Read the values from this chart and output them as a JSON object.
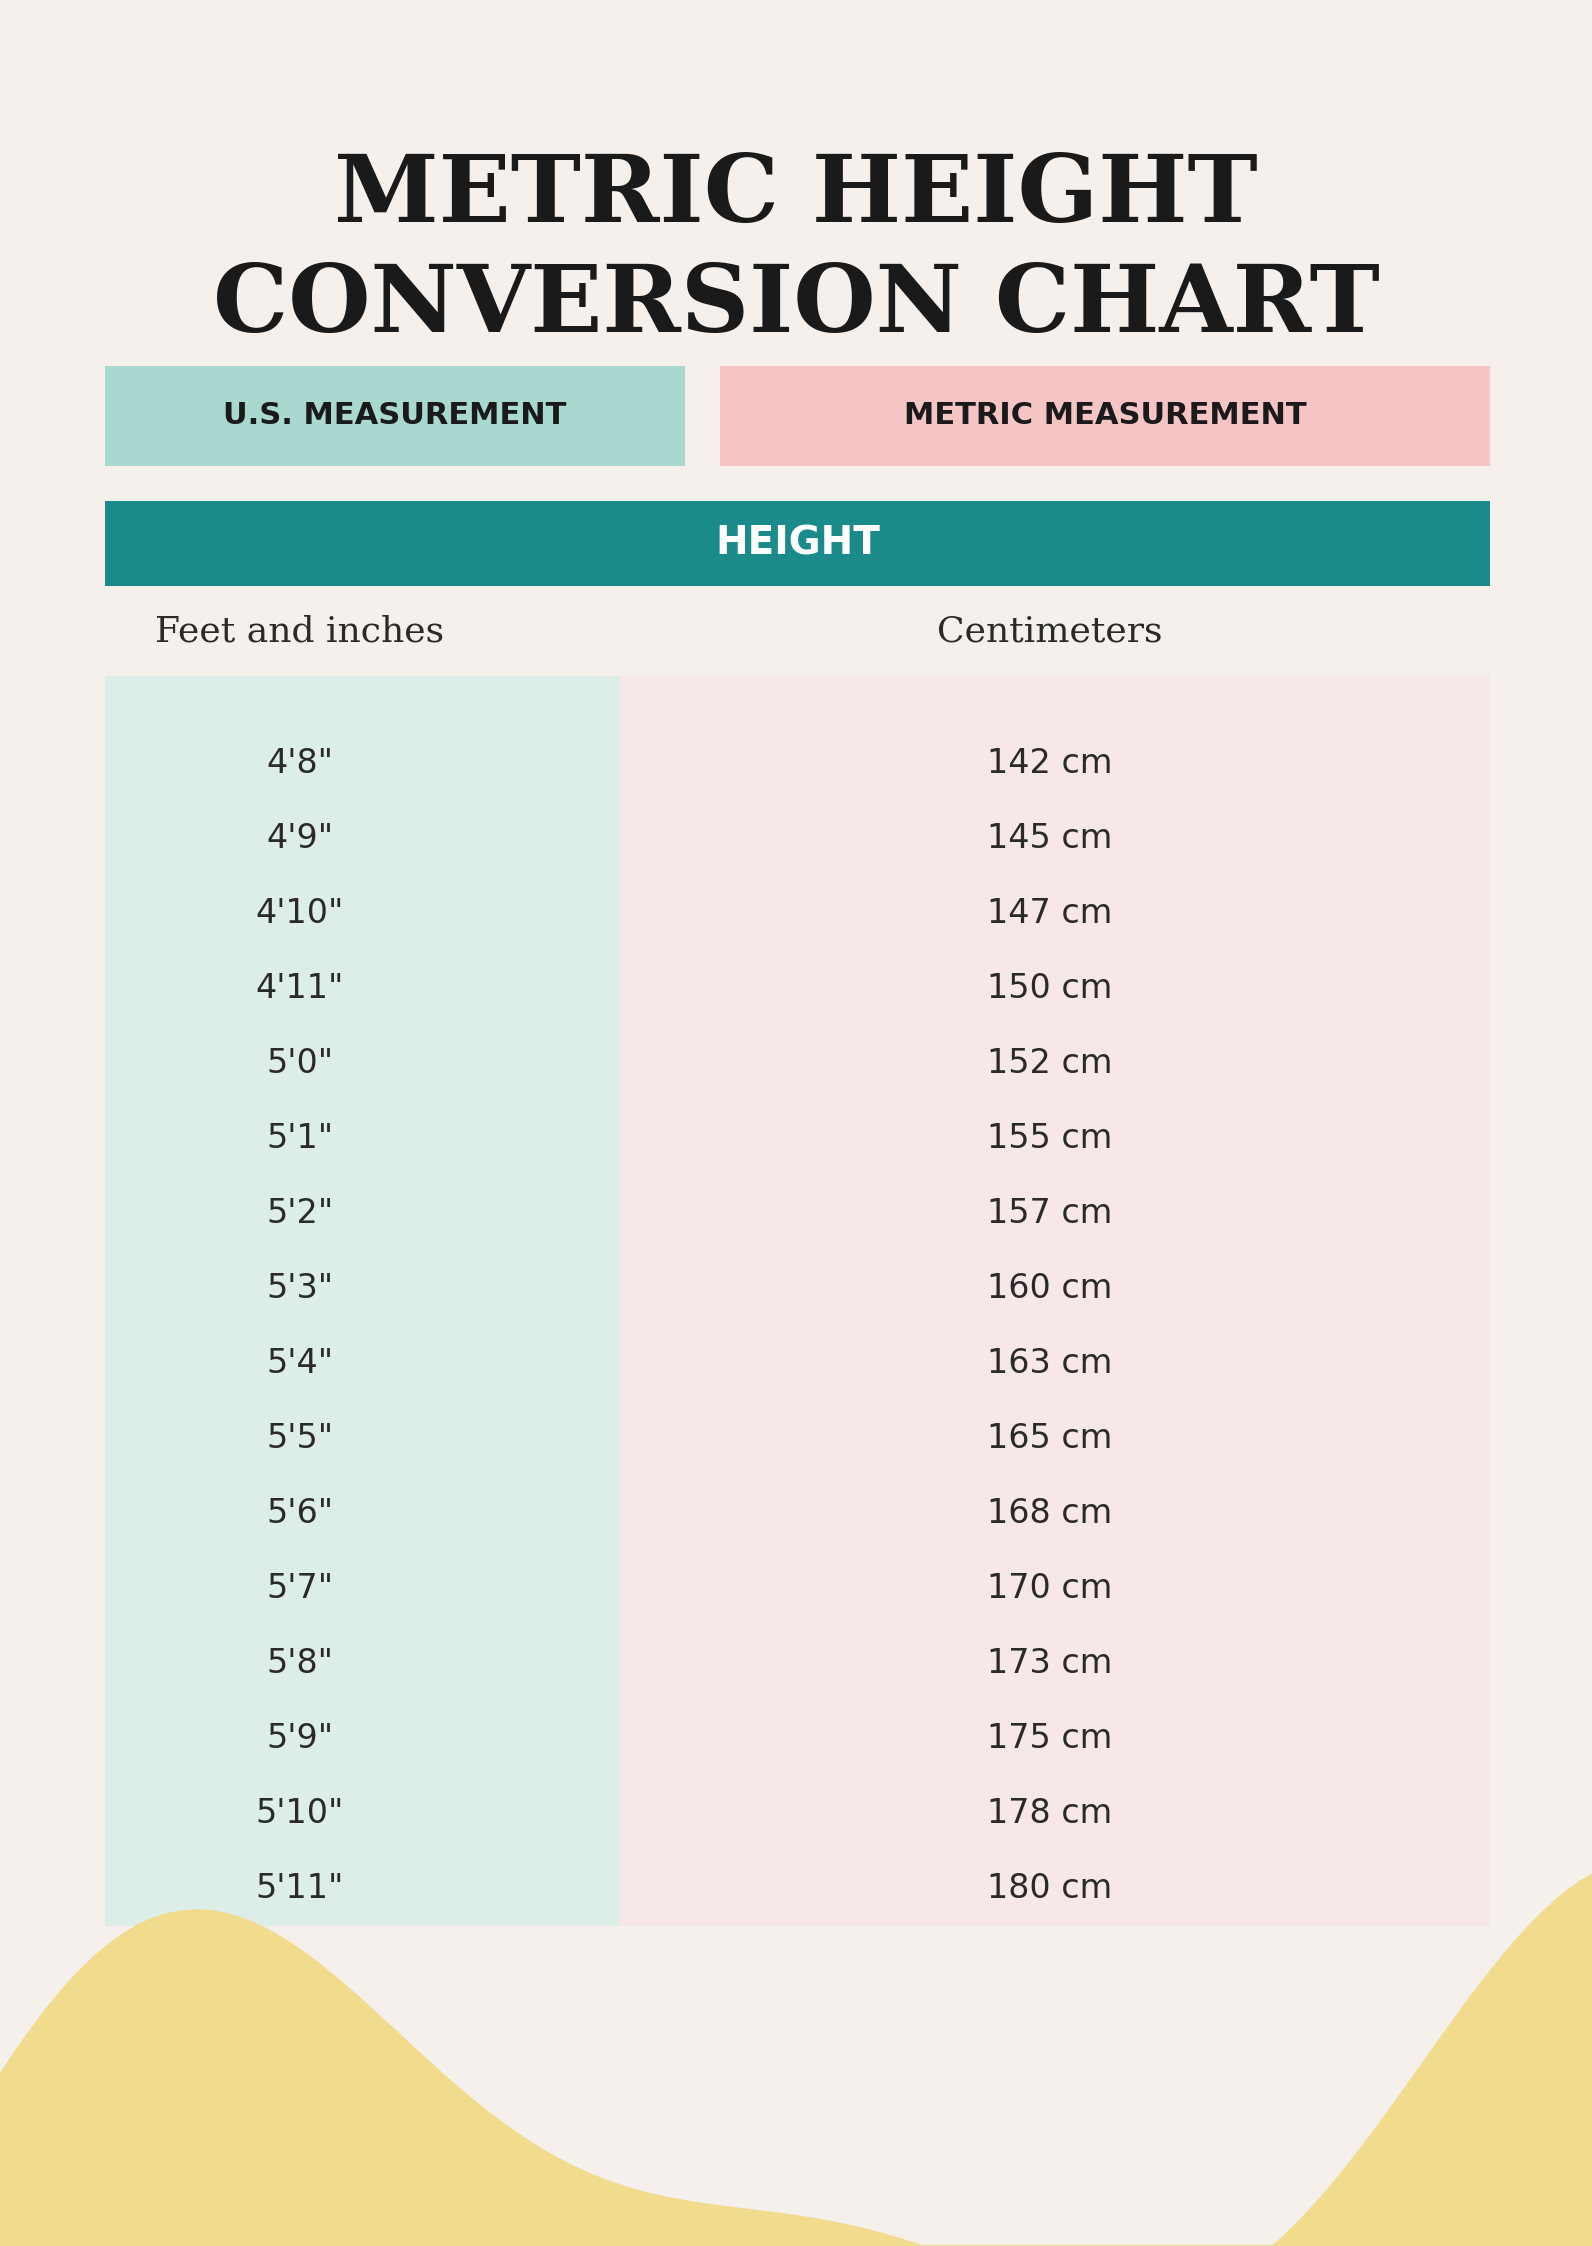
{
  "title_line1": "METRIC HEIGHT",
  "title_line2": "CONVERSION CHART",
  "title_color": "#1a1a1a",
  "background_color": "#f5f0eb",
  "header_left_text": "U.S. MEASUREMENT",
  "header_left_bg": "#a8d8d0",
  "header_right_text": "METRIC MEASUREMENT",
  "header_right_bg": "#f5c5c5",
  "subheader_text": "HEIGHT",
  "subheader_bg": "#1a8a8a",
  "subheader_text_color": "#ffffff",
  "col1_header": "Feet and inches",
  "col2_header": "Centimeters",
  "col_header_color": "#2a2a2a",
  "table_left_bg": "#ddeee8",
  "table_right_bg": "#f7e8e8",
  "data_rows": [
    [
      "4'8\"",
      "142 cm"
    ],
    [
      "4'9\"",
      "145 cm"
    ],
    [
      "4'10\"",
      "147 cm"
    ],
    [
      "4'11\"",
      "150 cm"
    ],
    [
      "5'0\"",
      "152 cm"
    ],
    [
      "5'1\"",
      "155 cm"
    ],
    [
      "5'2\"",
      "157 cm"
    ],
    [
      "5'3\"",
      "160 cm"
    ],
    [
      "5'4\"",
      "163 cm"
    ],
    [
      "5'5\"",
      "165 cm"
    ],
    [
      "5'6\"",
      "168 cm"
    ],
    [
      "5'7\"",
      "170 cm"
    ],
    [
      "5'8\"",
      "173 cm"
    ],
    [
      "5'9\"",
      "175 cm"
    ],
    [
      "5'10\"",
      "178 cm"
    ],
    [
      "5'11\"",
      "180 cm"
    ]
  ],
  "data_text_color": "#2a2a2a",
  "wave_color": "#f0dc8c",
  "figsize": [
    15.92,
    22.46
  ],
  "dpi": 100
}
